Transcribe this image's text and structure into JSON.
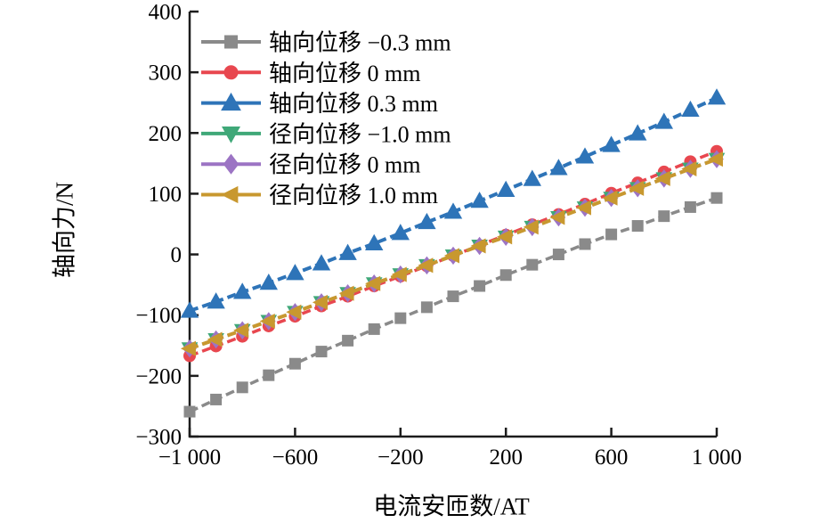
{
  "figure": {
    "background": "#ffffff",
    "axis_color": "#1c1c1c",
    "text_color": "#000000"
  },
  "chart_data": {
    "type": "line",
    "title": "",
    "xlabel": "电流安匝数/AT",
    "ylabel": "轴向力/N",
    "xlim": [
      -1000,
      1000
    ],
    "ylim": [
      -300,
      400
    ],
    "grid": false,
    "legend_position": "top-left",
    "xticks": {
      "values": [
        -1000,
        -600,
        -200,
        200,
        600,
        1000
      ],
      "labels": [
        "−1 000",
        "−600",
        "−200",
        "200",
        "600",
        "1 000"
      ]
    },
    "yticks": {
      "values": [
        400,
        300,
        200,
        100,
        0,
        -100,
        -200,
        -300
      ],
      "labels": [
        "400",
        "300",
        "200",
        "100",
        "0",
        "−100",
        "−200",
        "−300"
      ]
    },
    "x": [
      -1000,
      -900,
      -800,
      -700,
      -600,
      -500,
      -400,
      -300,
      -200,
      -100,
      0,
      100,
      200,
      300,
      400,
      500,
      600,
      700,
      800,
      900,
      1000
    ],
    "series": [
      {
        "name": "轴向位移 −0.3 mm",
        "color": "#8a8a8a",
        "marker": "square",
        "line_style": "dashed",
        "values": [
          -259,
          -239,
          -219,
          -199,
          -180,
          -160,
          -142,
          -123,
          -105,
          -87,
          -69,
          -52,
          -34,
          -17,
          0,
          17,
          33,
          47,
          63,
          78,
          93
        ]
      },
      {
        "name": "轴向位移 0 mm",
        "color": "#e8474f",
        "marker": "circle",
        "line_style": "dashed",
        "values": [
          -167,
          -151,
          -135,
          -118,
          -102,
          -85,
          -69,
          -52,
          -36,
          -19,
          -2,
          15,
          32,
          49,
          66,
          83,
          101,
          118,
          136,
          153,
          170
        ]
      },
      {
        "name": "轴向位移 0.3 mm",
        "color": "#2e74b8",
        "marker": "triangle-up",
        "line_style": "dashed",
        "values": [
          -93,
          -78,
          -62,
          -47,
          -31,
          -15,
          2,
          18,
          35,
          53,
          70,
          88,
          106,
          124,
          142,
          161,
          180,
          199,
          218,
          238,
          258
        ]
      },
      {
        "name": "径向位移 −1.0 mm",
        "color": "#3fa878",
        "marker": "triangle-down",
        "line_style": "dashed",
        "values": [
          -155,
          -140,
          -125,
          -110,
          -95,
          -79,
          -64,
          -48,
          -33,
          -18,
          -2,
          14,
          29,
          45,
          61,
          77,
          93,
          109,
          125,
          141,
          157
        ]
      },
      {
        "name": "径向位移 0 mm",
        "color": "#9c74c4",
        "marker": "diamond",
        "line_style": "dashed",
        "values": [
          -155,
          -140,
          -125,
          -110,
          -95,
          -79,
          -64,
          -48,
          -33,
          -18,
          -2,
          14,
          29,
          45,
          61,
          77,
          93,
          109,
          125,
          141,
          157
        ]
      },
      {
        "name": "径向位移 1.0 mm",
        "color": "#c8982f",
        "marker": "triangle-left",
        "line_style": "dashed",
        "values": [
          -155,
          -140,
          -125,
          -110,
          -95,
          -79,
          -64,
          -48,
          -33,
          -18,
          -2,
          14,
          29,
          45,
          61,
          77,
          93,
          109,
          125,
          141,
          157
        ]
      }
    ]
  }
}
